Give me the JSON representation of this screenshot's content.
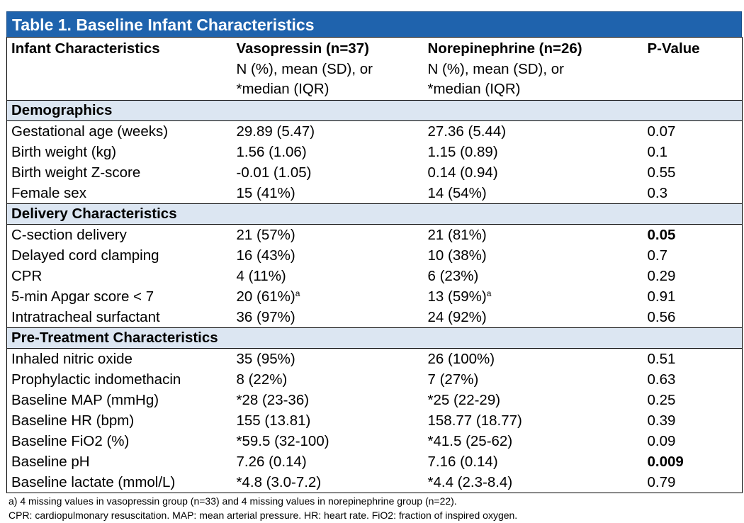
{
  "title": "Table 1. Baseline Infant Characteristics",
  "header": {
    "col1": "Infant Characteristics",
    "col2": {
      "title": "Vasopressin (n=37)",
      "sub1": "N (%), mean (SD), or",
      "sub2": "*median (IQR)"
    },
    "col3": {
      "title": "Norepinephrine (n=26)",
      "sub1": "N (%), mean (SD), or",
      "sub2": "*median (IQR)"
    },
    "col4": "P-Value"
  },
  "sections": [
    {
      "name": "Demographics",
      "rows": [
        {
          "label": "Gestational age (weeks)",
          "vaso": "29.89 (5.47)",
          "norepi": "27.36 (5.44)",
          "p": "0.07",
          "bold": false
        },
        {
          "label": "Birth weight (kg)",
          "vaso": "1.56 (1.06)",
          "norepi": "1.15 (0.89)",
          "p": "0.1",
          "bold": false
        },
        {
          "label": "Birth weight Z-score",
          "vaso": "-0.01 (1.05)",
          "norepi": "0.14 (0.94)",
          "p": "0.55",
          "bold": false
        },
        {
          "label": "Female sex",
          "vaso": "15 (41%)",
          "norepi": "14 (54%)",
          "p": "0.3",
          "bold": false
        }
      ]
    },
    {
      "name": "Delivery Characteristics",
      "rows": [
        {
          "label": "C-section delivery",
          "vaso": "21 (57%)",
          "norepi": "21 (81%)",
          "p": "0.05",
          "bold": true
        },
        {
          "label": "Delayed cord clamping",
          "vaso": "16 (43%)",
          "norepi": "10 (38%)",
          "p": "0.7",
          "bold": false
        },
        {
          "label": "CPR",
          "vaso": "4 (11%)",
          "norepi": "6 (23%)",
          "p": "0.29",
          "bold": false
        },
        {
          "label": "5-min Apgar score < 7",
          "vaso": "20 (61%)",
          "vaso_note": "a",
          "norepi": "13 (59%)",
          "norepi_note": "a",
          "p": "0.91",
          "bold": false
        },
        {
          "label": "Intratracheal surfactant",
          "vaso": "36 (97%)",
          "norepi": "24 (92%)",
          "p": "0.56",
          "bold": false
        }
      ]
    },
    {
      "name": "Pre-Treatment Characteristics",
      "rows": [
        {
          "label": "Inhaled nitric oxide",
          "vaso": "35 (95%)",
          "norepi": "26 (100%)",
          "p": "0.51",
          "bold": false
        },
        {
          "label": "Prophylactic indomethacin",
          "vaso": "8 (22%)",
          "norepi": "7 (27%)",
          "p": "0.63",
          "bold": false
        },
        {
          "label": "Baseline MAP (mmHg)",
          "vaso": "*28 (23-36)",
          "norepi": "*25 (22-29)",
          "p": "0.25",
          "bold": false
        },
        {
          "label": "Baseline HR (bpm)",
          "vaso": "155 (13.81)",
          "norepi": "158.77 (18.77)",
          "p": "0.39",
          "bold": false
        },
        {
          "label": "Baseline FiO2 (%)",
          "vaso": "*59.5 (32-100)",
          "norepi": "*41.5 (25-62)",
          "p": "0.09",
          "bold": false
        },
        {
          "label": "Baseline pH",
          "vaso": "7.26 (0.14)",
          "norepi": "7.16 (0.14)",
          "p": "0.009",
          "bold": true
        },
        {
          "label": "Baseline lactate (mmol/L)",
          "vaso": "*4.8 (3.0-7.2)",
          "norepi": "*4.4 (2.3-8.4)",
          "p": "0.79",
          "bold": false
        }
      ]
    }
  ],
  "footnotes": [
    "a) 4 missing values in vasopressin group (n=33) and 4 missing values in norepinephrine group (n=22).",
    "CPR: cardiopulmonary resuscitation. MAP: mean arterial pressure. HR: heart rate. FiO2: fraction of inspired oxygen."
  ],
  "colors": {
    "title_bg": "#1f63ad",
    "title_text": "#ffffff",
    "section_bg": "#dce6f2"
  }
}
